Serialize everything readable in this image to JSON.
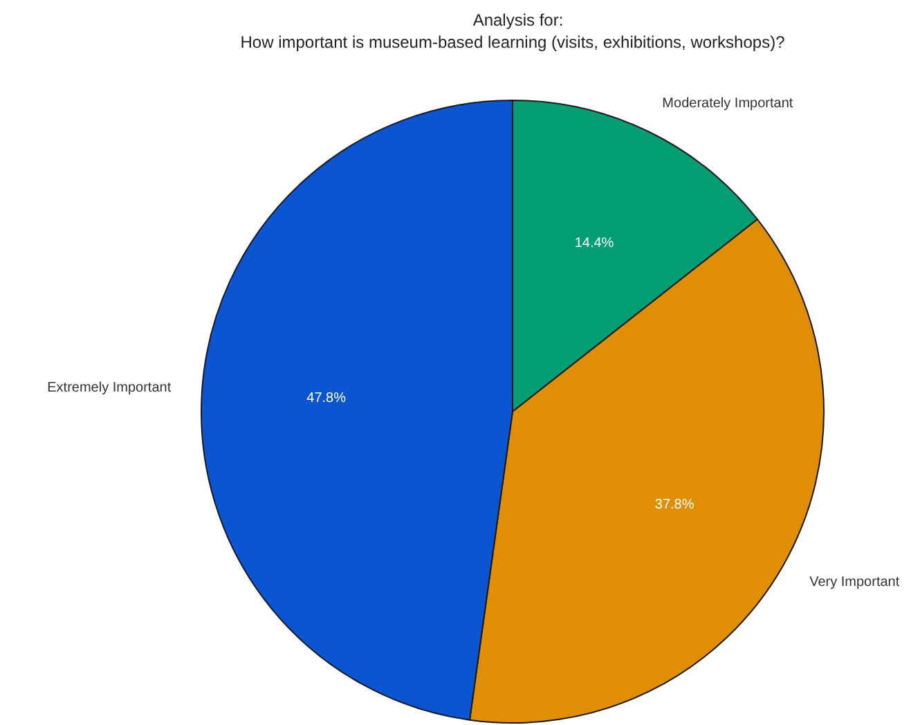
{
  "chart_data": {
    "type": "pie",
    "title": "Analysis for:",
    "subtitle": "How important is museum-based learning (visits, exhibitions, workshops)?",
    "categories": [
      "Moderately Important",
      "Very Important",
      "Extremely Important"
    ],
    "values": [
      14.4,
      37.8,
      47.8
    ],
    "colors": [
      "#039e73",
      "#e08e05",
      "#0a55d1"
    ],
    "value_labels": [
      "14.4%",
      "37.8%",
      "47.8%"
    ]
  }
}
